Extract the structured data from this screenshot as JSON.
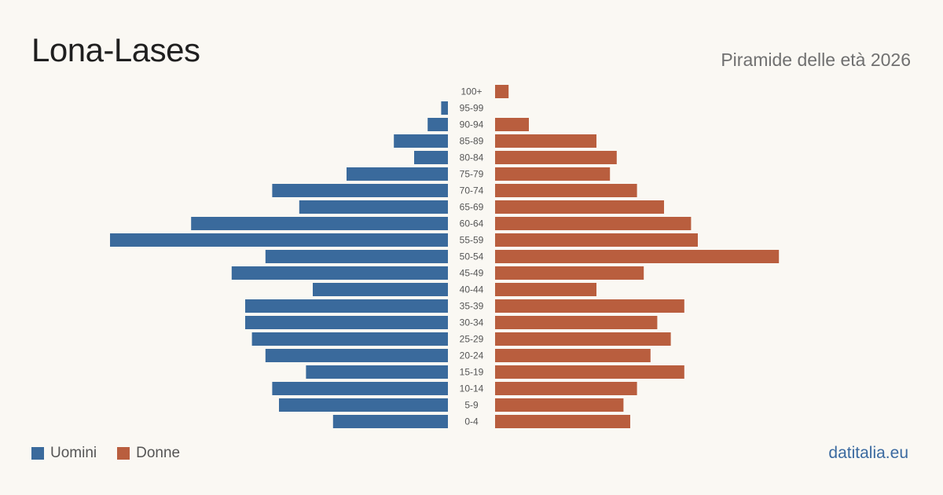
{
  "header": {
    "title": "Lona-Lases",
    "subtitle": "Piramide delle età 2026"
  },
  "legend": {
    "men_label": "Uomini",
    "women_label": "Donne"
  },
  "brand": "datitalia.eu",
  "colors": {
    "men": "#3a6a9c",
    "women": "#b95e3e",
    "background": "#faf8f3"
  },
  "chart_data": {
    "type": "bar",
    "orientation": "horizontal-pyramid",
    "title": "Lona-Lases",
    "subtitle": "Piramide delle età 2026",
    "categories": [
      "100+",
      "95-99",
      "90-94",
      "85-89",
      "80-84",
      "75-79",
      "70-74",
      "65-69",
      "60-64",
      "55-59",
      "50-54",
      "45-49",
      "40-44",
      "35-39",
      "30-34",
      "25-29",
      "20-24",
      "15-19",
      "10-14",
      "5-9",
      "0-4"
    ],
    "series": [
      {
        "name": "Uomini",
        "values": [
          0,
          1,
          3,
          8,
          5,
          15,
          26,
          22,
          38,
          50,
          27,
          32,
          20,
          30,
          30,
          29,
          27,
          21,
          26,
          25,
          17
        ]
      },
      {
        "name": "Donne",
        "values": [
          2,
          0,
          5,
          15,
          18,
          17,
          21,
          25,
          29,
          30,
          42,
          22,
          15,
          28,
          24,
          26,
          23,
          28,
          21,
          19,
          20
        ]
      }
    ],
    "legend_position": "bottom-left",
    "grid": false
  }
}
